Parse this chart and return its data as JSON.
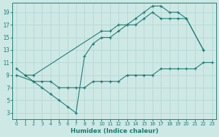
{
  "line1": {
    "x": [
      0,
      1,
      2,
      10,
      11,
      12,
      13,
      14,
      15,
      16,
      17,
      18,
      19,
      20,
      22
    ],
    "y": [
      10,
      9,
      9,
      16,
      16,
      17,
      17,
      18,
      19,
      20,
      20,
      19,
      19,
      18,
      13
    ]
  },
  "line2": {
    "x": [
      1,
      2,
      3,
      4,
      5,
      6,
      7,
      8,
      9,
      10,
      11,
      12,
      13,
      14,
      15,
      16,
      17,
      18,
      19,
      20,
      22
    ],
    "y": [
      9,
      8,
      7,
      6,
      5,
      4,
      3,
      12,
      14,
      15,
      15,
      16,
      17,
      17,
      18,
      19,
      18,
      18,
      18,
      18,
      13
    ]
  },
  "line3": {
    "x": [
      0,
      2,
      3,
      4,
      5,
      6,
      7,
      8,
      9,
      10,
      11,
      12,
      13,
      14,
      15,
      16,
      17,
      18,
      19,
      20,
      21,
      22,
      23
    ],
    "y": [
      9,
      8,
      8,
      8,
      7,
      7,
      7,
      7,
      8,
      8,
      8,
      8,
      9,
      9,
      9,
      9,
      10,
      10,
      10,
      10,
      10,
      11,
      11
    ]
  },
  "bg_color": "#cde8e5",
  "grid_color": "#b8d8d5",
  "line_color": "#1a7a6e",
  "xlabel": "Humidex (Indice chaleur)",
  "xlim": [
    -0.5,
    23.5
  ],
  "ylim": [
    2,
    20.5
  ],
  "yticks": [
    3,
    5,
    7,
    9,
    11,
    13,
    15,
    17,
    19
  ],
  "xticks": [
    0,
    1,
    2,
    3,
    4,
    5,
    6,
    7,
    8,
    9,
    10,
    11,
    12,
    13,
    14,
    15,
    16,
    17,
    18,
    19,
    20,
    21,
    22,
    23
  ]
}
